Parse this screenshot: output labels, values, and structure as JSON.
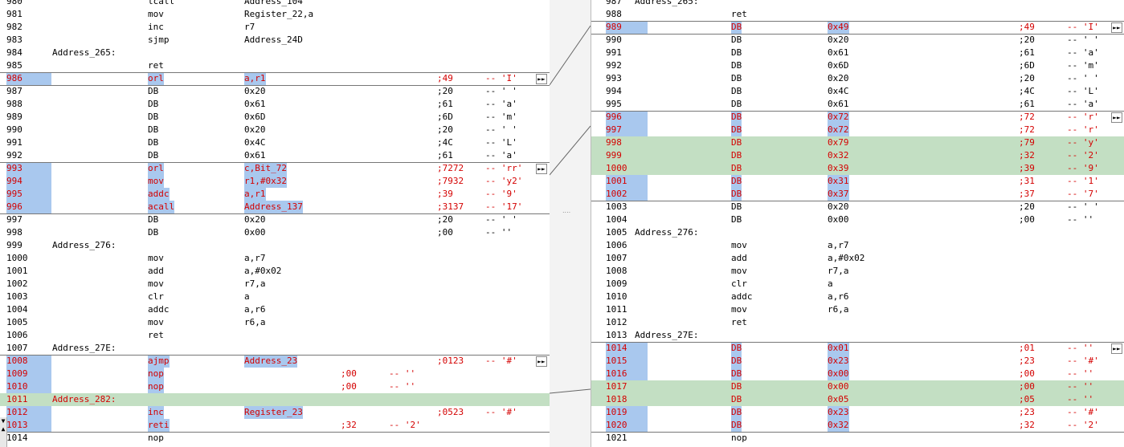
{
  "left": {
    "rows": [
      {
        "ln": "980",
        "lab": "",
        "mn": "lcall",
        "op": "Address_104",
        "cm": "",
        "dsc": "",
        "st": "n"
      },
      {
        "ln": "981",
        "lab": "",
        "mn": "mov",
        "op": "Register_22,a",
        "cm": "",
        "dsc": "",
        "st": "n"
      },
      {
        "ln": "982",
        "lab": "",
        "mn": "inc",
        "op": "r7",
        "cm": "",
        "dsc": "",
        "st": "n"
      },
      {
        "ln": "983",
        "lab": "",
        "mn": "sjmp",
        "op": "Address_24D",
        "cm": "",
        "dsc": "",
        "st": "n"
      },
      {
        "ln": "984",
        "lab": "Address_265:",
        "mn": "",
        "op": "",
        "cm": "",
        "dsc": "",
        "st": "n"
      },
      {
        "ln": "985",
        "lab": "",
        "mn": "ret",
        "op": "",
        "cm": "",
        "dsc": "",
        "st": "n"
      },
      {
        "ln": "986",
        "lab": "",
        "mn": "orl",
        "op": "a,r1",
        "cm": ";49",
        "dsc": "-- 'I'",
        "st": "c"
      },
      {
        "ln": "987",
        "lab": "",
        "mn": "DB",
        "op": "0x20",
        "cm": ";20",
        "dsc": "-- ' '",
        "st": "n"
      },
      {
        "ln": "988",
        "lab": "",
        "mn": "DB",
        "op": "0x61",
        "cm": ";61",
        "dsc": "-- 'a'",
        "st": "n"
      },
      {
        "ln": "989",
        "lab": "",
        "mn": "DB",
        "op": "0x6D",
        "cm": ";6D",
        "dsc": "-- 'm'",
        "st": "n"
      },
      {
        "ln": "990",
        "lab": "",
        "mn": "DB",
        "op": "0x20",
        "cm": ";20",
        "dsc": "-- ' '",
        "st": "n"
      },
      {
        "ln": "991",
        "lab": "",
        "mn": "DB",
        "op": "0x4C",
        "cm": ";4C",
        "dsc": "-- 'L'",
        "st": "n"
      },
      {
        "ln": "992",
        "lab": "",
        "mn": "DB",
        "op": "0x61",
        "cm": ";61",
        "dsc": "-- 'a'",
        "st": "n"
      },
      {
        "ln": "993",
        "lab": "",
        "mn": "orl",
        "op": "c,Bit_72",
        "cm": ";7272",
        "dsc": "-- 'rr'",
        "st": "c"
      },
      {
        "ln": "994",
        "lab": "",
        "mn": "mov",
        "op": "r1,#0x32",
        "cm": ";7932",
        "dsc": "-- 'y2'",
        "st": "c"
      },
      {
        "ln": "995",
        "lab": "",
        "mn": "addc",
        "op": "a,r1",
        "cm": ";39",
        "dsc": "-- '9'",
        "st": "c"
      },
      {
        "ln": "996",
        "lab": "",
        "mn": "acall",
        "op": "Address_137",
        "cm": ";3137",
        "dsc": "-- '17'",
        "st": "c"
      },
      {
        "ln": "997",
        "lab": "",
        "mn": "DB",
        "op": "0x20",
        "cm": ";20",
        "dsc": "-- ' '",
        "st": "n"
      },
      {
        "ln": "998",
        "lab": "",
        "mn": "DB",
        "op": "0x00",
        "cm": ";00",
        "dsc": "-- ''",
        "st": "n"
      },
      {
        "ln": "999",
        "lab": "Address_276:",
        "mn": "",
        "op": "",
        "cm": "",
        "dsc": "",
        "st": "n"
      },
      {
        "ln": "1000",
        "lab": "",
        "mn": "mov",
        "op": "a,r7",
        "cm": "",
        "dsc": "",
        "st": "n"
      },
      {
        "ln": "1001",
        "lab": "",
        "mn": "add",
        "op": "a,#0x02",
        "cm": "",
        "dsc": "",
        "st": "n"
      },
      {
        "ln": "1002",
        "lab": "",
        "mn": "mov",
        "op": "r7,a",
        "cm": "",
        "dsc": "",
        "st": "n"
      },
      {
        "ln": "1003",
        "lab": "",
        "mn": "clr",
        "op": "a",
        "cm": "",
        "dsc": "",
        "st": "n"
      },
      {
        "ln": "1004",
        "lab": "",
        "mn": "addc",
        "op": "a,r6",
        "cm": "",
        "dsc": "",
        "st": "n"
      },
      {
        "ln": "1005",
        "lab": "",
        "mn": "mov",
        "op": "r6,a",
        "cm": "",
        "dsc": "",
        "st": "n"
      },
      {
        "ln": "1006",
        "lab": "",
        "mn": "ret",
        "op": "",
        "cm": "",
        "dsc": "",
        "st": "n"
      },
      {
        "ln": "1007",
        "lab": "Address_27E:",
        "mn": "",
        "op": "",
        "cm": "",
        "dsc": "",
        "st": "n"
      },
      {
        "ln": "1008",
        "lab": "",
        "mn": "ajmp",
        "op": "Address_23",
        "cm": ";0123",
        "dsc": "-- '#'",
        "st": "c"
      },
      {
        "ln": "1009",
        "lab": "",
        "mn": "nop",
        "op": "",
        "cm": ";00",
        "dsc": "-- ''",
        "st": "c",
        "cmx": "mid"
      },
      {
        "ln": "1010",
        "lab": "",
        "mn": "nop",
        "op": "",
        "cm": ";00",
        "dsc": "-- ''",
        "st": "c",
        "cmx": "mid"
      },
      {
        "ln": "1011",
        "lab": "Address_282:",
        "mn": "",
        "op": "",
        "cm": "",
        "dsc": "",
        "st": "g"
      },
      {
        "ln": "1012",
        "lab": "",
        "mn": "inc",
        "op": "Register_23",
        "cm": ";0523",
        "dsc": "-- '#'",
        "st": "c"
      },
      {
        "ln": "1013",
        "lab": "",
        "mn": "reti",
        "op": "",
        "cm": ";32",
        "dsc": "-- '2'",
        "st": "c",
        "cmx": "mid"
      },
      {
        "ln": "1014",
        "lab": "",
        "mn": "nop",
        "op": "",
        "cm": "",
        "dsc": "",
        "st": "n"
      }
    ]
  },
  "right": {
    "rows": [
      {
        "ln": "987",
        "lab": "Address_265:",
        "mn": "",
        "op": "",
        "cm": "",
        "dsc": "",
        "st": "n"
      },
      {
        "ln": "988",
        "lab": "",
        "mn": "ret",
        "op": "",
        "cm": "",
        "dsc": "",
        "st": "n"
      },
      {
        "ln": "989",
        "lab": "",
        "mn": "DB",
        "op": "0x49",
        "cm": ";49",
        "dsc": "-- 'I'",
        "st": "c"
      },
      {
        "ln": "990",
        "lab": "",
        "mn": "DB",
        "op": "0x20",
        "cm": ";20",
        "dsc": "-- ' '",
        "st": "n"
      },
      {
        "ln": "991",
        "lab": "",
        "mn": "DB",
        "op": "0x61",
        "cm": ";61",
        "dsc": "-- 'a'",
        "st": "n"
      },
      {
        "ln": "992",
        "lab": "",
        "mn": "DB",
        "op": "0x6D",
        "cm": ";6D",
        "dsc": "-- 'm'",
        "st": "n"
      },
      {
        "ln": "993",
        "lab": "",
        "mn": "DB",
        "op": "0x20",
        "cm": ";20",
        "dsc": "-- ' '",
        "st": "n"
      },
      {
        "ln": "994",
        "lab": "",
        "mn": "DB",
        "op": "0x4C",
        "cm": ";4C",
        "dsc": "-- 'L'",
        "st": "n"
      },
      {
        "ln": "995",
        "lab": "",
        "mn": "DB",
        "op": "0x61",
        "cm": ";61",
        "dsc": "-- 'a'",
        "st": "n"
      },
      {
        "ln": "996",
        "lab": "",
        "mn": "DB",
        "op": "0x72",
        "cm": ";72",
        "dsc": "-- 'r'",
        "st": "c"
      },
      {
        "ln": "997",
        "lab": "",
        "mn": "DB",
        "op": "0x72",
        "cm": ";72",
        "dsc": "-- 'r'",
        "st": "c"
      },
      {
        "ln": "998",
        "lab": "",
        "mn": "DB",
        "op": "0x79",
        "cm": ";79",
        "dsc": "-- 'y'",
        "st": "g"
      },
      {
        "ln": "999",
        "lab": "",
        "mn": "DB",
        "op": "0x32",
        "cm": ";32",
        "dsc": "-- '2'",
        "st": "g"
      },
      {
        "ln": "1000",
        "lab": "",
        "mn": "DB",
        "op": "0x39",
        "cm": ";39",
        "dsc": "-- '9'",
        "st": "g"
      },
      {
        "ln": "1001",
        "lab": "",
        "mn": "DB",
        "op": "0x31",
        "cm": ";31",
        "dsc": "-- '1'",
        "st": "c"
      },
      {
        "ln": "1002",
        "lab": "",
        "mn": "DB",
        "op": "0x37",
        "cm": ";37",
        "dsc": "-- '7'",
        "st": "c"
      },
      {
        "ln": "1003",
        "lab": "",
        "mn": "DB",
        "op": "0x20",
        "cm": ";20",
        "dsc": "-- ' '",
        "st": "n"
      },
      {
        "ln": "1004",
        "lab": "",
        "mn": "DB",
        "op": "0x00",
        "cm": ";00",
        "dsc": "-- ''",
        "st": "n"
      },
      {
        "ln": "1005",
        "lab": "Address_276:",
        "mn": "",
        "op": "",
        "cm": "",
        "dsc": "",
        "st": "n"
      },
      {
        "ln": "1006",
        "lab": "",
        "mn": "mov",
        "op": "a,r7",
        "cm": "",
        "dsc": "",
        "st": "n"
      },
      {
        "ln": "1007",
        "lab": "",
        "mn": "add",
        "op": "a,#0x02",
        "cm": "",
        "dsc": "",
        "st": "n"
      },
      {
        "ln": "1008",
        "lab": "",
        "mn": "mov",
        "op": "r7,a",
        "cm": "",
        "dsc": "",
        "st": "n"
      },
      {
        "ln": "1009",
        "lab": "",
        "mn": "clr",
        "op": "a",
        "cm": "",
        "dsc": "",
        "st": "n"
      },
      {
        "ln": "1010",
        "lab": "",
        "mn": "addc",
        "op": "a,r6",
        "cm": "",
        "dsc": "",
        "st": "n"
      },
      {
        "ln": "1011",
        "lab": "",
        "mn": "mov",
        "op": "r6,a",
        "cm": "",
        "dsc": "",
        "st": "n"
      },
      {
        "ln": "1012",
        "lab": "",
        "mn": "ret",
        "op": "",
        "cm": "",
        "dsc": "",
        "st": "n"
      },
      {
        "ln": "1013",
        "lab": "Address_27E:",
        "mn": "",
        "op": "",
        "cm": "",
        "dsc": "",
        "st": "n"
      },
      {
        "ln": "1014",
        "lab": "",
        "mn": "DB",
        "op": "0x01",
        "cm": ";01",
        "dsc": "-- ''",
        "st": "c"
      },
      {
        "ln": "1015",
        "lab": "",
        "mn": "DB",
        "op": "0x23",
        "cm": ";23",
        "dsc": "-- '#'",
        "st": "c"
      },
      {
        "ln": "1016",
        "lab": "",
        "mn": "DB",
        "op": "0x00",
        "cm": ";00",
        "dsc": "-- ''",
        "st": "c"
      },
      {
        "ln": "1017",
        "lab": "",
        "mn": "DB",
        "op": "0x00",
        "cm": ";00",
        "dsc": "-- ''",
        "st": "g"
      },
      {
        "ln": "1018",
        "lab": "",
        "mn": "DB",
        "op": "0x05",
        "cm": ";05",
        "dsc": "-- ''",
        "st": "g"
      },
      {
        "ln": "1019",
        "lab": "",
        "mn": "DB",
        "op": "0x23",
        "cm": ";23",
        "dsc": "-- '#'",
        "st": "c"
      },
      {
        "ln": "1020",
        "lab": "",
        "mn": "DB",
        "op": "0x32",
        "cm": ";32",
        "dsc": "-- '2'",
        "st": "c"
      },
      {
        "ln": "1021",
        "lab": "",
        "mn": "nop",
        "op": "",
        "cm": "",
        "dsc": "",
        "st": "n"
      }
    ]
  },
  "icons": {
    "merge": "merge-arrow-icon",
    "scroll_down": "scroll-down-icon",
    "scroll_up": "scroll-up-icon"
  },
  "colors": {
    "changed_bg": "#a9c8ee",
    "inserted_bg": "#c3dfc3",
    "changed_text": "#d40000"
  }
}
